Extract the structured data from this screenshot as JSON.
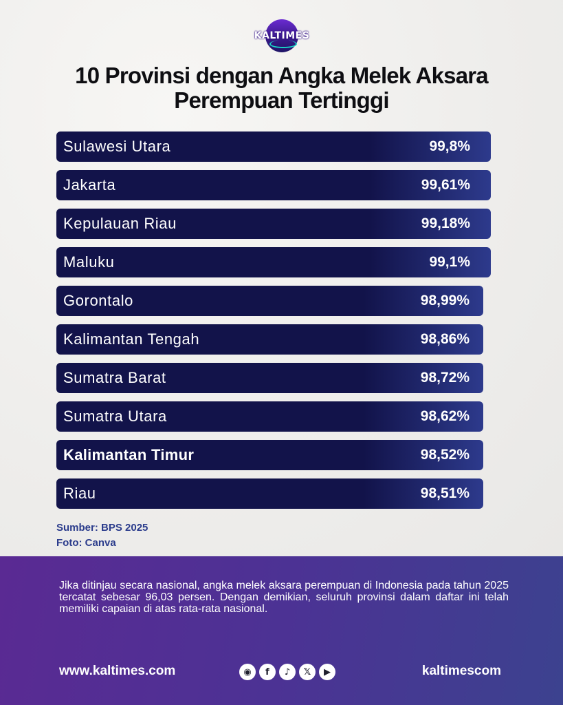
{
  "brand": {
    "logo_text": "KALTIMES"
  },
  "chart_data": {
    "type": "bar",
    "orientation": "horizontal",
    "title": "10 Provinsi dengan Angka Melek Aksara Perempuan Tertinggi",
    "title_lines": [
      "10 Provinsi dengan Angka Melek Aksara",
      "Perempuan Tertinggi"
    ],
    "categories": [
      "Sulawesi Utara",
      "Jakarta",
      "Kepulauan Riau",
      "Maluku",
      "Gorontalo",
      "Kalimantan Tengah",
      "Sumatra Barat",
      "Sumatra Utara",
      "Kalimantan Timur",
      "Riau"
    ],
    "values": [
      99.8,
      99.61,
      99.18,
      99.1,
      98.99,
      98.86,
      98.72,
      98.62,
      98.52,
      98.51
    ],
    "value_labels": [
      "99,8%",
      "99,61%",
      "99,18%",
      "99,1%",
      "98,99%",
      "98,86%",
      "98,72%",
      "98,62%",
      "98,52%",
      "98,51%"
    ],
    "highlight": "Kalimantan Timur",
    "bar_color": "#12134a",
    "unit": "%"
  },
  "source": {
    "line1": "Sumber: BPS 2025",
    "line2": "Foto: Canva"
  },
  "footer": {
    "note": "Jika ditinjau secara nasional, angka melek aksara perempuan di Indonesia pada tahun 2025 tercatat sebesar 96,03 persen. Dengan demikian, seluruh provinsi dalam daftar ini telah memiliki capaian di atas rata-rata nasional.",
    "website": "www.kaltimes.com",
    "handle": "kaltimescom",
    "social_icons": [
      "instagram-icon",
      "facebook-icon",
      "tiktok-icon",
      "x-icon",
      "youtube-icon"
    ]
  },
  "colors": {
    "footer_start": "#5a2a93",
    "footer_end": "#3c428f",
    "source_text": "#2b3c8c"
  }
}
